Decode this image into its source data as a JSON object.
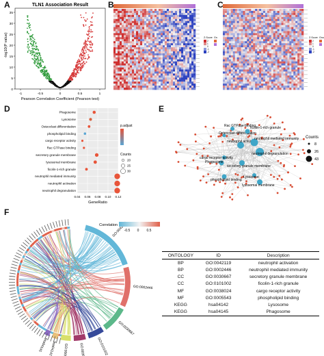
{
  "panel_labels": {
    "a": "A",
    "b": "B",
    "c": "C",
    "d": "D",
    "e": "E",
    "f": "F"
  },
  "panel_a": {
    "title": "TLN1 Association Result",
    "xlabel": "Pearson Correlation Coefficient (Pearson test)",
    "ylabel": "-log10(P value)",
    "x_ticks": [
      "-1",
      "-0.5",
      "0",
      "0.5",
      "1"
    ],
    "y_ticks": [
      "0",
      "5",
      "10",
      "15",
      "20",
      "25",
      "30",
      "35"
    ],
    "colors": {
      "negative": "#2e9a3a",
      "positive": "#d63a3a",
      "neutral": "#111111"
    }
  },
  "heatmap_legend": {
    "title": "Z-Score",
    "group_title": "Group",
    "values": [
      "2",
      "1",
      "0",
      "-1",
      "-2"
    ],
    "colors": {
      "high": "#cf2f2f",
      "mid": "#f2f2f2",
      "low": "#2d42c0",
      "bar_left": "#e06a3a",
      "bar_right": "#b070d8"
    }
  },
  "panel_d": {
    "xlabel": "GeneRatio",
    "x_ticks": [
      "0.04",
      "0.06",
      "0.08",
      "0.10",
      "0.12"
    ],
    "legend_color_title": "p.adjust",
    "legend_size_title": "Counts",
    "size_values": [
      "20",
      "25",
      "30"
    ],
    "chart_data": {
      "type": "scatter",
      "xlabel": "GeneRatio",
      "xlim": [
        0.04,
        0.12
      ],
      "categories": [
        "Phagosome",
        "Lysosome",
        "Osteoclast differentiation",
        "phospholipid binding",
        "cargo receptor activity",
        "Rac GTPase binding",
        "secretory granule membrane",
        "lysosomal membrane",
        "ficolin-1-rich granule",
        "neutrophil mediated immunity",
        "neutrophil activation",
        "neutrophil degranulation"
      ],
      "gene_ratio": [
        0.073,
        0.066,
        0.063,
        0.055,
        0.05,
        0.053,
        0.078,
        0.075,
        0.058,
        0.118,
        0.118,
        0.118
      ],
      "counts": [
        22,
        21,
        20,
        19,
        18,
        18,
        24,
        23,
        20,
        33,
        33,
        33
      ],
      "colors": [
        "#e8553a",
        "#d9603e",
        "#e8553a",
        "#5aa6d4",
        "#e8553a",
        "#e8553a",
        "#e8553a",
        "#e8553a",
        "#e8553a",
        "#e8553a",
        "#e8553a",
        "#e8553a"
      ]
    }
  },
  "panel_e": {
    "legend_title": "Counts",
    "legend_values": [
      "8",
      "26",
      "43"
    ],
    "terms": [
      "Rac GTPase binding",
      "Osteoclast differentiation",
      "ficolin-1-rich granule",
      "neutrophil activation",
      "neutrophil mediated immunity",
      "cargo receptor activity",
      "neutrophil degranulation",
      "Phagosome",
      "secretory granule membrane",
      "phospholipid binding",
      "Lysosome",
      "lysosomal membrane"
    ]
  },
  "panel_f": {
    "legend_title": "Correlation",
    "legend_ticks": [
      "-0.5",
      "0",
      "0.5"
    ],
    "sectors": [
      {
        "id": "GO:0042119",
        "color": "#62b7d8"
      },
      {
        "id": "GO:0002446",
        "color": "#e0706a"
      },
      {
        "id": "GO:0030667",
        "color": "#5cb88a"
      },
      {
        "id": "GO:0101002",
        "color": "#364a9a"
      },
      {
        "id": "GO:0038024",
        "color": "#a23a6a"
      },
      {
        "id": "GO:0005543",
        "color": "#d8e06a"
      },
      {
        "id": "hsa04142",
        "color": "#e8c07a"
      },
      {
        "id": "hsa04145",
        "color": "#8a6ac0"
      }
    ]
  },
  "table": {
    "headers": [
      "ONTOLOGY",
      "ID",
      "Description"
    ],
    "rows": [
      [
        "BP",
        "GO:0042119",
        "neutrophil activation"
      ],
      [
        "BP",
        "GO:0002446",
        "neutrophil mediated immunity"
      ],
      [
        "CC",
        "GO:0030667",
        "secretory granule membrane"
      ],
      [
        "CC",
        "GO:0101002",
        "ficolin-1-rich granule"
      ],
      [
        "MF",
        "GO:0038024",
        "cargo receptor activity"
      ],
      [
        "MF",
        "GO:0005543",
        "phospholipid binding"
      ],
      [
        "KEGG",
        "hsa04142",
        "Lysosome"
      ],
      [
        "KEGG",
        "hsa04145",
        "Phagosome"
      ]
    ]
  }
}
